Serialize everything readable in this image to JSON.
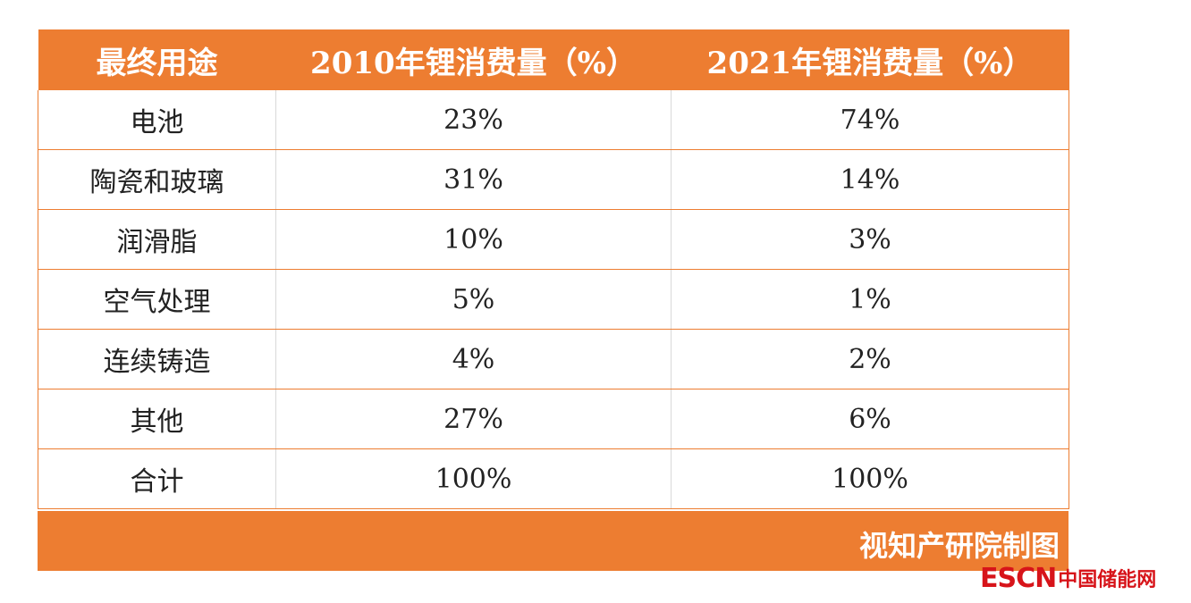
{
  "chart_data": {
    "type": "table",
    "columns": [
      "最终用途",
      "2010年锂消费量（%）",
      "2021年锂消费量（%）"
    ],
    "rows": [
      [
        "电池",
        "23%",
        "74%"
      ],
      [
        "陶瓷和玻璃",
        "31%",
        "14%"
      ],
      [
        "润滑脂",
        "10%",
        "3%"
      ],
      [
        "空气处理",
        "5%",
        "1%"
      ],
      [
        "连续铸造",
        "4%",
        "2%"
      ],
      [
        "其他",
        "27%",
        "6%"
      ],
      [
        "合计",
        "100%",
        "100%"
      ]
    ]
  },
  "footer": {
    "credit": "视知产研院制图"
  },
  "logo": {
    "latin": "ESCN",
    "cn": "中国储能网"
  },
  "colors": {
    "header_bg": "#ED7D31",
    "logo_red": "#D7141A"
  }
}
